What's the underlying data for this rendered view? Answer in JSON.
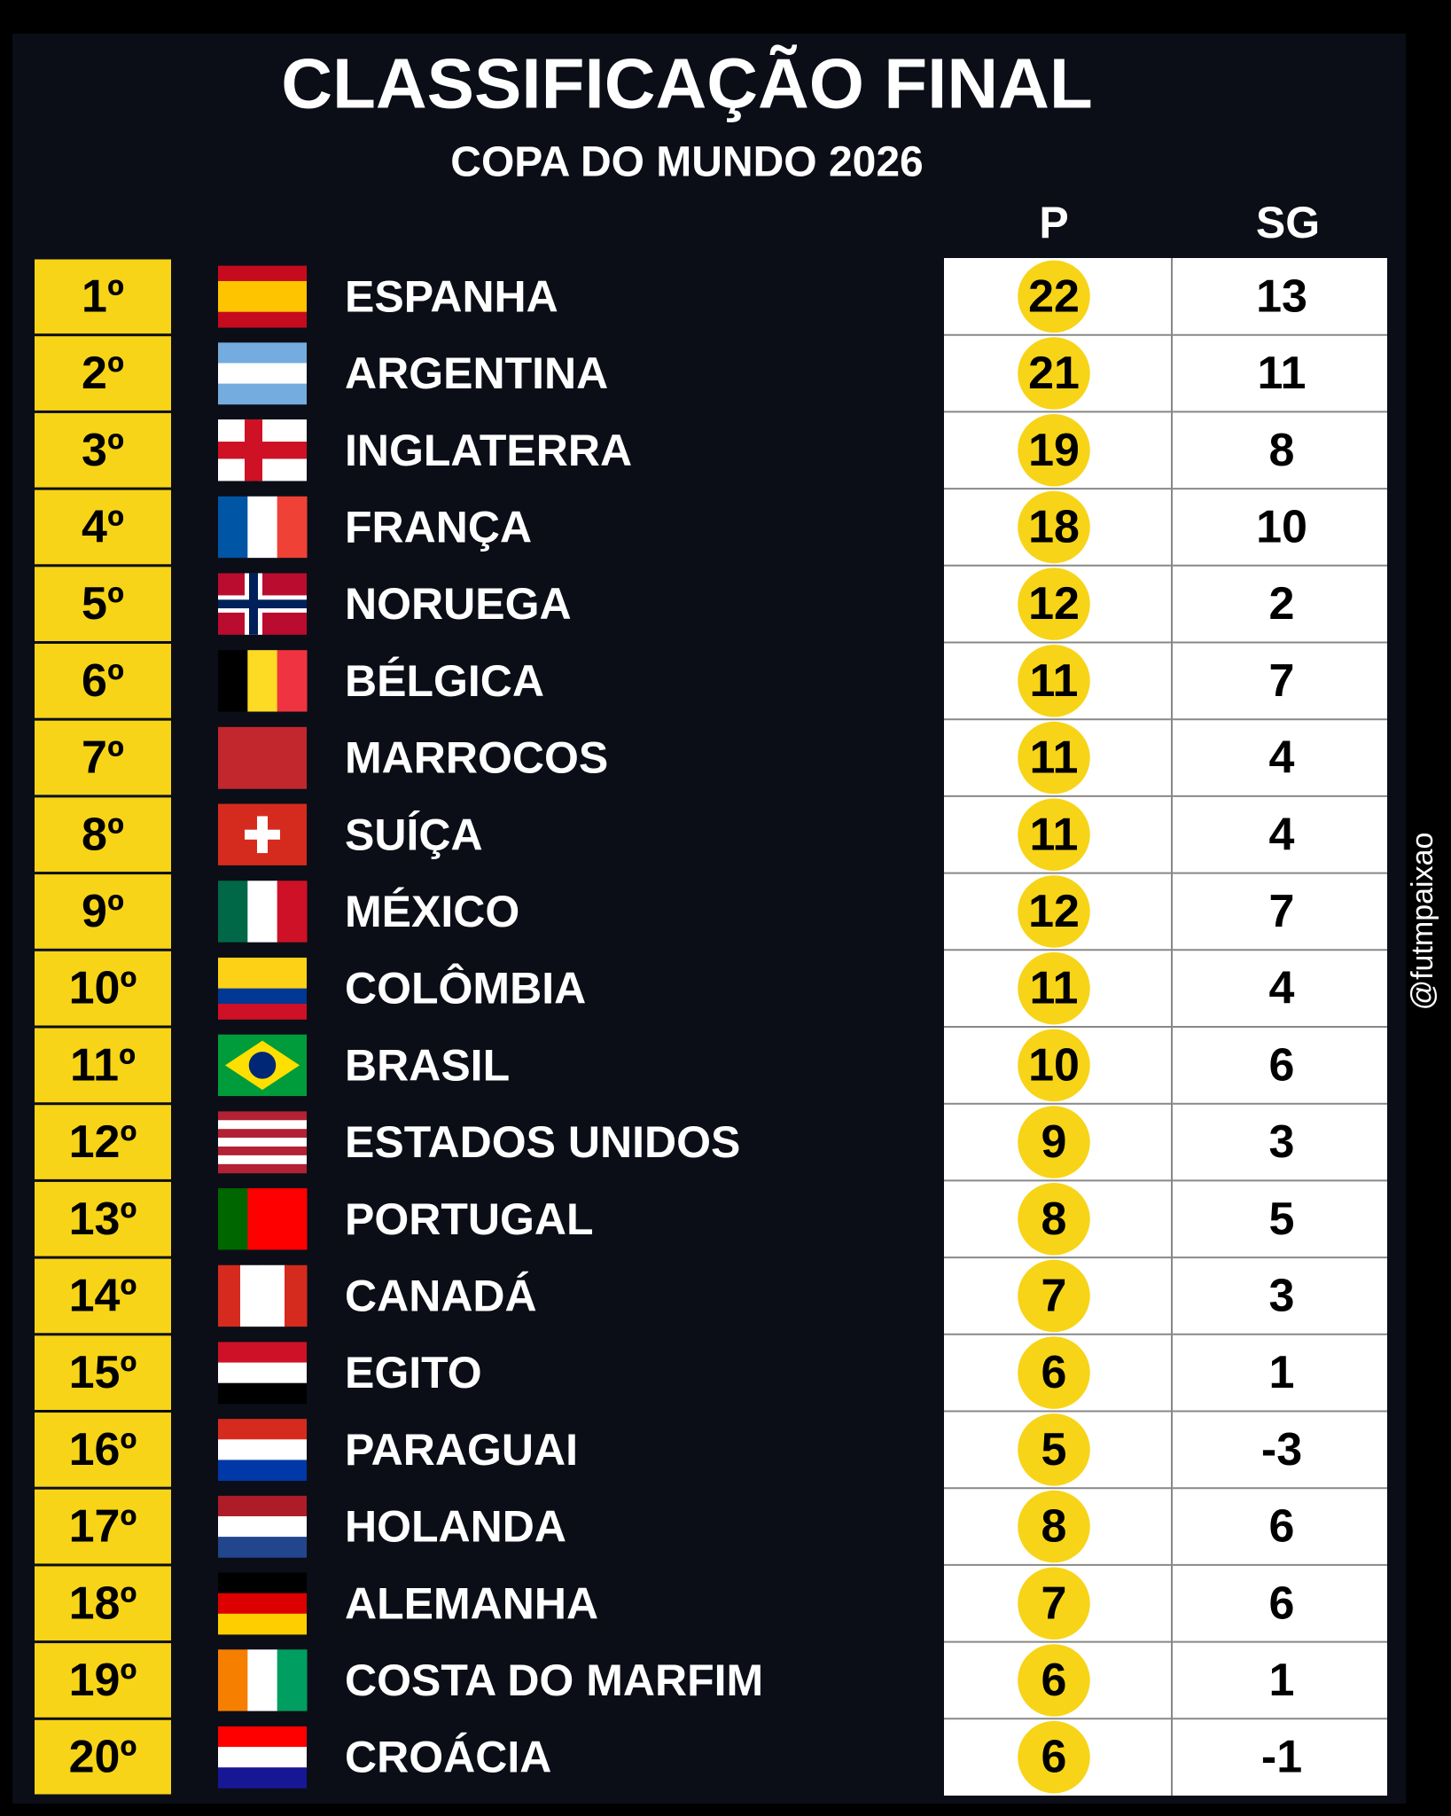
{
  "header": {
    "title": "CLASSIFICAÇÃO FINAL",
    "subtitle": "COPA DO MUNDO 2026"
  },
  "table": {
    "columns": [
      "P",
      "SG"
    ],
    "rows": [
      [
        "1º",
        "ESPANHA",
        22,
        13
      ],
      [
        "2º",
        "ARGENTINA",
        21,
        11
      ],
      [
        "3º",
        "INGLATERRA",
        19,
        8
      ],
      [
        "4º",
        "FRANÇA",
        18,
        10
      ],
      [
        "5º",
        "NORUEGA",
        12,
        2
      ],
      [
        "6º",
        "BÉLGICA",
        11,
        7
      ],
      [
        "7º",
        "MARROCOS",
        11,
        4
      ],
      [
        "8º",
        "SUÍÇA",
        11,
        4
      ],
      [
        "9º",
        "MÉXICO",
        12,
        7
      ],
      [
        "10º",
        "COLÔMBIA",
        11,
        4
      ],
      [
        "11º",
        "BRASIL",
        10,
        6
      ],
      [
        "12º",
        "ESTADOS UNIDOS",
        9,
        3
      ],
      [
        "13º",
        "PORTUGAL",
        8,
        5
      ],
      [
        "14º",
        "CANADÁ",
        7,
        3
      ],
      [
        "15º",
        "EGITO",
        6,
        1
      ],
      [
        "16º",
        "PARAGUAI",
        5,
        -3
      ],
      [
        "17º",
        "HOLANDA",
        8,
        6
      ],
      [
        "18º",
        "ALEMANHA",
        7,
        6
      ],
      [
        "19º",
        "COSTA DO MARFIM",
        6,
        1
      ],
      [
        "20º",
        "CROÁCIA",
        6,
        -1
      ]
    ]
  },
  "watermark": "@futmpaixao"
}
